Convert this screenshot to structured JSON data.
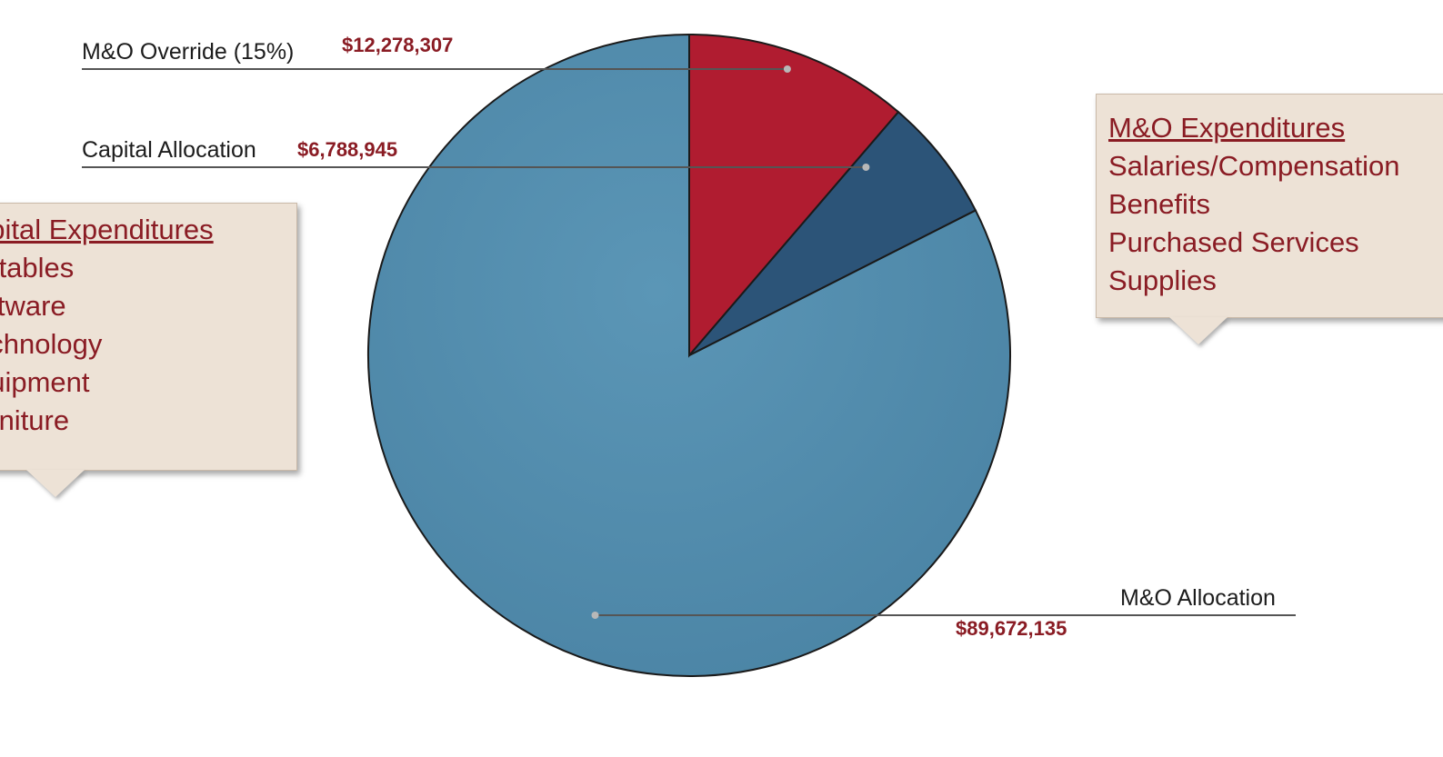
{
  "chart_data": {
    "type": "pie",
    "slices": [
      {
        "label": "M&O Allocation",
        "value": 89672135,
        "value_text": "$89,672,135",
        "color": "#4f88a8"
      },
      {
        "label": "Capital Allocation",
        "value": 6788945,
        "value_text": "$6,788,945",
        "color": "#2c5478"
      },
      {
        "label": "M&O Override (15%)",
        "value": 12278307,
        "value_text": "$12,278,307",
        "color": "#b01c30"
      }
    ],
    "start_angle_deg": 0,
    "direction": "counterclockwise",
    "leader_lines": true,
    "colors": {
      "value_text": "#8a1c24",
      "name_text": "#1c1c1c",
      "outline": "#1a1a1a",
      "leader": "#555555"
    }
  },
  "callouts": {
    "capital": {
      "heading": "apital Expenditures",
      "items": [
        "ortables",
        "oftware",
        "echnology",
        "quipment",
        "urniture"
      ]
    },
    "mo": {
      "heading": "M&O Expenditures",
      "items": [
        "Salaries/Compensation",
        "Benefits",
        "Purchased Services",
        "Supplies"
      ]
    }
  },
  "colors": {
    "callout_bg": "#ede2d6",
    "callout_text": "#8a1c24"
  }
}
